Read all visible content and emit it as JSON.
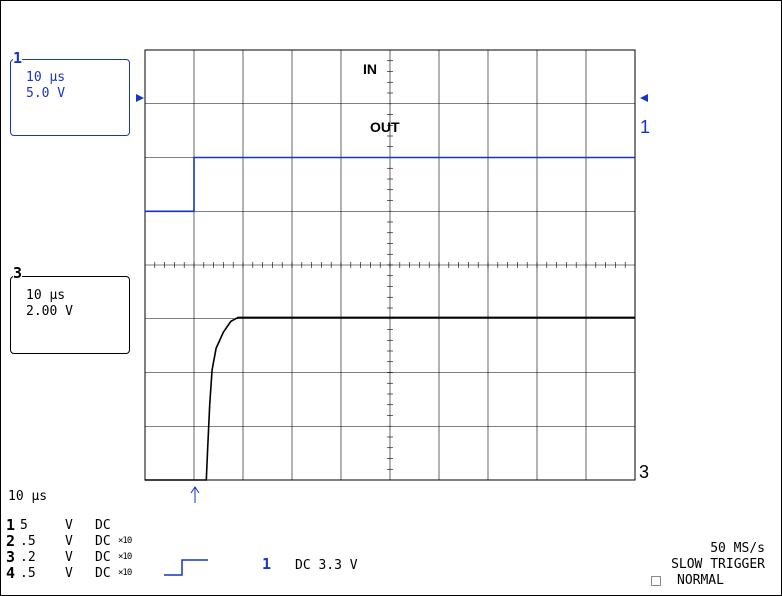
{
  "channel1_box": {
    "marker": "1",
    "timebase": "10 µs",
    "volts": "5.0 V",
    "color": "#1733c8"
  },
  "channel3_box": {
    "marker": "3",
    "timebase": "10 µs",
    "volts": "2.00 V",
    "color": "#000000"
  },
  "right_markers": {
    "ch1": "1",
    "ch3": "3"
  },
  "timebase_label": "10 µs",
  "channel_table": [
    {
      "ch": "1",
      "scale": "5",
      "unit": "V",
      "coupling": "DC",
      "probe": ""
    },
    {
      "ch": "2",
      "scale": ".5",
      "unit": "V",
      "coupling": "DC",
      "probe": "×10"
    },
    {
      "ch": "3",
      "scale": ".2",
      "unit": "V",
      "coupling": "DC",
      "probe": "×10"
    },
    {
      "ch": "4",
      "scale": ".5",
      "unit": "V",
      "coupling": "DC",
      "probe": "×10"
    }
  ],
  "trigger": {
    "channel": "1",
    "coupling_level": "DC 3.3 V",
    "icon": "rising-edge-icon"
  },
  "acquisition": {
    "sample_rate": "50 MS/s",
    "trigger_mode": "SLOW TRIGGER",
    "mode": "NORMAL"
  },
  "chart_data": {
    "type": "line",
    "grid": true,
    "divisions": {
      "x": 10,
      "y": 8
    },
    "time_per_div_us": 10,
    "xlim_us": [
      -10,
      90
    ],
    "series": [
      {
        "name": "IN",
        "color": "#1733c8",
        "volts_per_div": 5,
        "ground_div": 5,
        "points": [
          [
            -10,
            0
          ],
          [
            0,
            0
          ],
          [
            0,
            5.0
          ],
          [
            90,
            5.0
          ]
        ]
      },
      {
        "name": "OUT",
        "color": "#000000",
        "volts_per_div": 2,
        "ground_div": 0,
        "points": [
          [
            -10,
            0
          ],
          [
            2.5,
            0
          ],
          [
            2.8,
            1.2
          ],
          [
            3.2,
            2.8
          ],
          [
            3.7,
            4.1
          ],
          [
            4.5,
            4.9
          ],
          [
            6.0,
            5.5
          ],
          [
            7.5,
            5.9
          ],
          [
            9.0,
            6.05
          ],
          [
            90,
            6.05
          ]
        ]
      }
    ]
  }
}
